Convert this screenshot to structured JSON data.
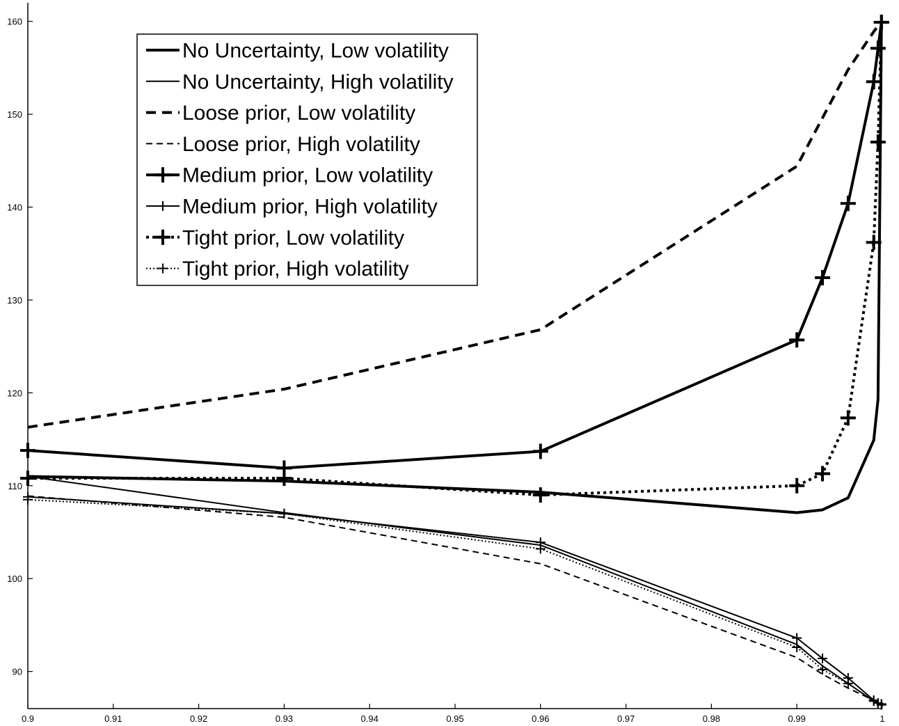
{
  "chart_data": {
    "type": "line",
    "title": "",
    "xlabel": "",
    "ylabel": "",
    "xlim": [
      0.9,
      1.0
    ],
    "ylim": [
      86,
      162
    ],
    "grid": false,
    "legend_position": "top-left",
    "x_ticks": [
      "0.9",
      "0.91",
      "0.92",
      "0.93",
      "0.94",
      "0.95",
      "0.96",
      "0.97",
      "0.98",
      "0.99",
      "1"
    ],
    "y_ticks": [
      "90",
      "100",
      "110",
      "120",
      "130",
      "140",
      "150",
      "160"
    ],
    "series": [
      {
        "name": "No Uncertainty, Low volatility",
        "style": {
          "width": 4,
          "dash": "",
          "marker": false
        },
        "x": [
          0.9,
          0.93,
          0.96,
          0.99,
          0.993,
          0.996,
          0.999,
          0.9995,
          0.9999
        ],
        "y": [
          111.0,
          110.5,
          109.3,
          107.1,
          107.4,
          108.7,
          114.9,
          119.3,
          160.0
        ]
      },
      {
        "name": "No Uncertainty, High volatility",
        "style": {
          "width": 2,
          "dash": "",
          "marker": false
        },
        "x": [
          0.9,
          0.93,
          0.96,
          0.99,
          0.993,
          0.996,
          0.999,
          0.9995,
          0.9999
        ],
        "y": [
          111.0,
          107.1,
          103.6,
          92.9,
          90.6,
          88.7,
          86.8,
          86.6,
          86.5
        ]
      },
      {
        "name": "Loose prior, Low volatility",
        "style": {
          "width": 4,
          "dash": "14 9",
          "marker": false
        },
        "x": [
          0.9,
          0.93,
          0.96,
          0.99,
          0.996,
          0.999,
          0.9995,
          0.9999
        ],
        "y": [
          116.3,
          120.4,
          126.8,
          144.4,
          154.8,
          158.9,
          159.5,
          159.9
        ]
      },
      {
        "name": "Loose prior, High volatility",
        "style": {
          "width": 2,
          "dash": "9 6",
          "marker": false
        },
        "x": [
          0.9,
          0.93,
          0.96,
          0.99,
          0.993,
          0.996,
          0.999,
          0.9995,
          0.9999
        ],
        "y": [
          108.9,
          106.6,
          101.6,
          91.5,
          89.7,
          88.2,
          86.9,
          86.6,
          86.4
        ]
      },
      {
        "name": "Medium prior, Low volatility",
        "style": {
          "width": 4,
          "dash": "",
          "marker": true,
          "marker_size": 22,
          "marker_width": 4
        },
        "x": [
          0.9,
          0.93,
          0.96,
          0.99,
          0.993,
          0.996,
          0.999,
          0.9995,
          0.9999
        ],
        "y": [
          113.8,
          111.9,
          113.7,
          125.7,
          132.4,
          140.4,
          153.5,
          157.1,
          159.9
        ]
      },
      {
        "name": "Medium prior, High volatility",
        "style": {
          "width": 2,
          "dash": "",
          "marker": true,
          "marker_size": 14,
          "marker_width": 2
        },
        "x": [
          0.9,
          0.93,
          0.96,
          0.99,
          0.993,
          0.996,
          0.999,
          0.9995,
          0.9999
        ],
        "y": [
          108.8,
          107.0,
          103.9,
          93.6,
          91.4,
          89.3,
          86.9,
          86.6,
          86.5
        ]
      },
      {
        "name": "Tight prior, Low volatility",
        "style": {
          "width": 4,
          "dash": "4 5",
          "marker": true,
          "marker_size": 22,
          "marker_width": 4
        },
        "x": [
          0.9,
          0.93,
          0.96,
          0.99,
          0.993,
          0.996,
          0.999,
          0.9995,
          0.9999
        ],
        "y": [
          110.8,
          110.8,
          109.0,
          110.0,
          111.3,
          117.3,
          136.2,
          147.0,
          159.9
        ]
      },
      {
        "name": "Tight prior, High volatility",
        "style": {
          "width": 2,
          "dash": "2 3",
          "marker": true,
          "marker_size": 14,
          "marker_width": 2
        },
        "x": [
          0.9,
          0.93,
          0.96,
          0.99,
          0.993,
          0.996,
          0.999,
          0.9995,
          0.9999
        ],
        "y": [
          108.5,
          107.0,
          103.2,
          92.6,
          90.2,
          88.7,
          86.8,
          86.6,
          86.4
        ]
      }
    ]
  }
}
